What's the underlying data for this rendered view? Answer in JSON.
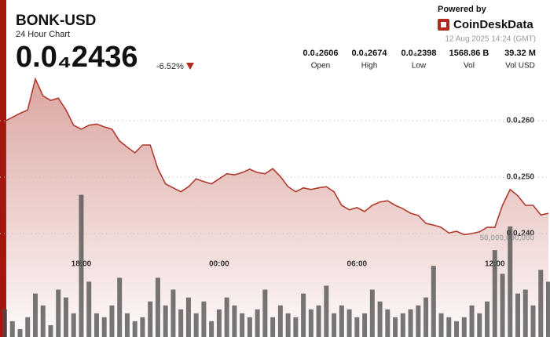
{
  "chart_data": {
    "type": "line",
    "title": "BONK-USD",
    "subtitle": "24 Hour Chart",
    "price": "0.0₄2436",
    "change": "-6.52%",
    "powered_by": "Powered by",
    "brand": "CoinDeskData",
    "timestamp": "12 Aug 2025 14:24 (GMT)",
    "stats": [
      {
        "value": "0.0₄2606",
        "label": "Open"
      },
      {
        "value": "0.0₄2674",
        "label": "High"
      },
      {
        "value": "0.0₄2398",
        "label": "Low"
      },
      {
        "value": "1568.86 B",
        "label": "Vol"
      },
      {
        "value": "39.32 M",
        "label": "Vol USD"
      }
    ],
    "categories": [
      null,
      null,
      null,
      null,
      null,
      null,
      null,
      null,
      null,
      null,
      "18:00",
      null,
      null,
      null,
      null,
      null,
      null,
      null,
      null,
      null,
      null,
      null,
      null,
      null,
      null,
      null,
      null,
      null,
      "00:00",
      null,
      null,
      null,
      null,
      null,
      null,
      null,
      null,
      null,
      null,
      null,
      null,
      null,
      null,
      null,
      null,
      null,
      "06:00",
      null,
      null,
      null,
      null,
      null,
      null,
      null,
      null,
      null,
      null,
      null,
      null,
      null,
      null,
      null,
      null,
      null,
      "12:00",
      null,
      null,
      null,
      null,
      null,
      null,
      null
    ],
    "series": [
      {
        "color": "#b03a2e",
        "values": [
          2.599e-05,
          2.606e-05,
          2.613e-05,
          2.619e-05,
          2.674e-05,
          2.644e-05,
          2.636e-05,
          2.64e-05,
          2.619e-05,
          2.592e-05,
          2.585e-05,
          2.592e-05,
          2.594e-05,
          2.589e-05,
          2.585e-05,
          2.564e-05,
          2.553e-05,
          2.543e-05,
          2.557e-05,
          2.557e-05,
          2.515e-05,
          2.488e-05,
          2.481e-05,
          2.474e-05,
          2.483e-05,
          2.497e-05,
          2.492e-05,
          2.488e-05,
          2.497e-05,
          2.506e-05,
          2.504e-05,
          2.508e-05,
          2.514e-05,
          2.508e-05,
          2.506e-05,
          2.515e-05,
          2.501e-05,
          2.483e-05,
          2.474e-05,
          2.481e-05,
          2.478e-05,
          2.481e-05,
          2.483e-05,
          2.474e-05,
          2.45e-05,
          2.442e-05,
          2.446e-05,
          2.439e-05,
          2.45e-05,
          2.456e-05,
          2.458e-05,
          2.45e-05,
          2.444e-05,
          2.436e-05,
          2.432e-05,
          2.418e-05,
          2.415e-05,
          2.411e-05,
          2.401e-05,
          2.404e-05,
          2.398e-05,
          2.4e-05,
          2.403e-05,
          2.411e-05,
          2.411e-05,
          2.45e-05,
          2.478e-05,
          2.467e-05,
          2.45e-05,
          2.45e-05,
          2.433e-05,
          2.436e-05
        ]
      },
      {
        "color": "#4a4a4a",
        "axis": "y2",
        "values": [
          14000000000,
          8000000000,
          4000000000,
          10000000000,
          22000000000,
          16000000000,
          6000000000,
          24000000000,
          20000000000,
          12000000000,
          72000000000,
          28000000000,
          12000000000,
          10000000000,
          16000000000,
          30000000000,
          12000000000,
          8000000000,
          10000000000,
          18000000000,
          30000000000,
          16000000000,
          24000000000,
          14000000000,
          20000000000,
          12000000000,
          18000000000,
          8000000000,
          14000000000,
          20000000000,
          16000000000,
          12000000000,
          10000000000,
          14000000000,
          24000000000,
          10000000000,
          16000000000,
          12000000000,
          10000000000,
          22000000000,
          14000000000,
          16000000000,
          26000000000,
          12000000000,
          16000000000,
          14000000000,
          10000000000,
          12000000000,
          24000000000,
          18000000000,
          14000000000,
          10000000000,
          12000000000,
          14000000000,
          16000000000,
          20000000000,
          36000000000,
          12000000000,
          10000000000,
          8000000000,
          10000000000,
          16000000000,
          12000000000,
          18000000000,
          44000000000,
          32000000000,
          56000000000,
          22000000000,
          24000000000,
          16000000000,
          34000000000,
          28000000000
        ]
      }
    ],
    "ylim": [
      2.35e-05,
      2.7e-05
    ],
    "yticks": [
      {
        "value": 2.4e-05,
        "label": "0.0₄240"
      },
      {
        "value": 2.5e-05,
        "label": "0.0₄250"
      },
      {
        "value": 2.6e-05,
        "label": "0.0₄260"
      }
    ],
    "y2lim": [
      0,
      100000000000
    ],
    "y2ticks": [
      {
        "value": 50000000000,
        "label": "50,000,000,000"
      }
    ],
    "grid": true
  }
}
